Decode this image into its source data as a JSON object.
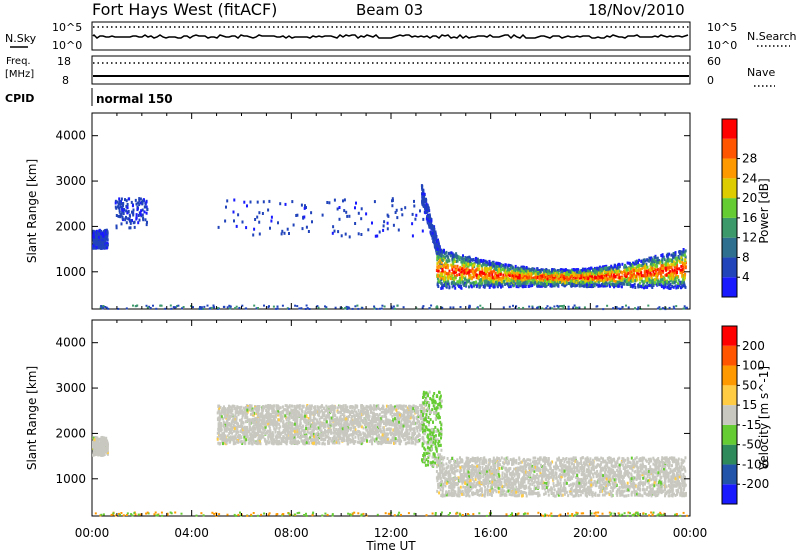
{
  "header": {
    "station": "Fort Hays West (fitACF)",
    "beam": "Beam 03",
    "date": "18/Nov/2010"
  },
  "top_panels": {
    "nsky_label": "N.Sky",
    "nsky_ticks": [
      "10^5",
      "10^0"
    ],
    "nsearch_label": "N.Search",
    "nsearch_ticks": [
      "10^5",
      "10^0"
    ],
    "freq_label": "Freq.",
    "freq_unit": "[MHz]",
    "freq_ticks": [
      "18",
      "8"
    ],
    "nave_label": "Nave",
    "nave_ticks": [
      "60",
      "0"
    ],
    "cpid_label": "CPID",
    "cpid_value": "normal 150"
  },
  "chart_data": [
    {
      "type": "heatmap",
      "name": "power-panel",
      "ylabel": "Slant Range [km]",
      "xlabel": "",
      "x_ticks": [
        "00:00",
        "04:00",
        "08:00",
        "12:00",
        "16:00",
        "20:00",
        "00:00"
      ],
      "x_range_hours": [
        0,
        24
      ],
      "y_ticks": [
        1000,
        2000,
        3000,
        4000
      ],
      "ylim": [
        180,
        4500
      ],
      "colorbar": {
        "label": "Power [dB]",
        "ticks": [
          "4",
          "8",
          "12",
          "16",
          "20",
          "24",
          "28"
        ],
        "colors": [
          "#1a1aff",
          "#2244bb",
          "#2e6e8e",
          "#3c9a6a",
          "#66cc33",
          "#ddcc00",
          "#ff9900",
          "#ff5500",
          "#ff0000"
        ]
      },
      "features": [
        {
          "x_start": 0.0,
          "x_end": 0.6,
          "y_low": 1550,
          "y_high": 1950,
          "level": "weak"
        },
        {
          "x_start": 0.9,
          "x_end": 2.2,
          "y_low": 2000,
          "y_high": 2650,
          "level": "weak-scattered"
        },
        {
          "x_start": 5.0,
          "x_end": 13.3,
          "y_low": 1800,
          "y_high": 2650,
          "level": "weak-scattered"
        },
        {
          "x_start": 13.2,
          "x_end": 14.0,
          "y_low": 1300,
          "y_high": 2950,
          "level": "descending-band"
        },
        {
          "x_start": 13.8,
          "x_end": 23.8,
          "y_low": 650,
          "y_high": 1500,
          "level": "strong-band",
          "peak_db": 28
        }
      ]
    },
    {
      "type": "heatmap",
      "name": "velocity-panel",
      "ylabel": "Slant Range [km]",
      "xlabel": "Time UT",
      "x_ticks": [
        "00:00",
        "04:00",
        "08:00",
        "12:00",
        "16:00",
        "20:00",
        "00:00"
      ],
      "x_range_hours": [
        0,
        24
      ],
      "y_ticks": [
        1000,
        2000,
        3000,
        4000
      ],
      "ylim": [
        180,
        4500
      ],
      "colorbar": {
        "label": "Velocity [m s^-1]",
        "ticks": [
          "200",
          "100",
          "50",
          "15",
          "-15",
          "-50",
          "-100",
          "-200"
        ],
        "colors": [
          "#1a1aff",
          "#2255aa",
          "#2e8a5a",
          "#66cc33",
          "#c8c8c0",
          "#ffcc44",
          "#ff9900",
          "#ff5500",
          "#ff0000"
        ]
      },
      "features": [
        {
          "x_start": 0.0,
          "x_end": 0.6,
          "y_low": 1550,
          "y_high": 1950,
          "level": "ground-scatter"
        },
        {
          "x_start": 5.0,
          "x_end": 13.3,
          "y_low": 1800,
          "y_high": 2650,
          "level": "ground-scatter"
        },
        {
          "x_start": 13.2,
          "x_end": 14.0,
          "y_low": 1300,
          "y_high": 2950,
          "level": "green-band"
        },
        {
          "x_start": 13.8,
          "x_end": 23.8,
          "y_low": 650,
          "y_high": 1500,
          "level": "ground-scatter"
        }
      ]
    }
  ]
}
